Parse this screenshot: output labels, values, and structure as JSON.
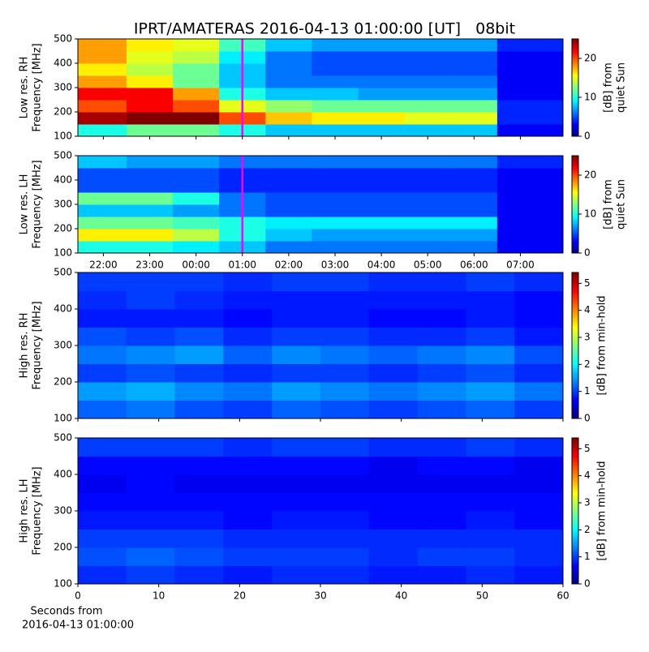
{
  "title": "IPRT/AMATERAS 2016-04-13 01:00:00 [UT]   08bit",
  "chart_data": [
    {
      "type": "spectrogram",
      "ylabel": [
        "Low res. RH",
        "Frequency [MHz]"
      ],
      "cmap": "jet",
      "xlim": [
        21.45,
        31.92
      ],
      "ylim": [
        100,
        500
      ],
      "xticks": [
        {
          "value": 22,
          "label": "22:00"
        },
        {
          "value": 23,
          "label": "23:00"
        },
        {
          "value": 24,
          "label": "00:00"
        },
        {
          "value": 25,
          "label": "01:00"
        },
        {
          "value": 26,
          "label": "02:00"
        },
        {
          "value": 27,
          "label": "03:00"
        },
        {
          "value": 28,
          "label": "04:00"
        },
        {
          "value": 29,
          "label": "05:00"
        },
        {
          "value": 30,
          "label": "06:00"
        },
        {
          "value": 31,
          "label": "07:00"
        }
      ],
      "show_xticklabels": false,
      "yticks": [
        100,
        200,
        300,
        400,
        500
      ],
      "time_bins": [
        21.45,
        22.5,
        23.5,
        24.5,
        25.5,
        26.5,
        27.5,
        28.5,
        29.5,
        30.5,
        31.92
      ],
      "freq_bins": [
        100,
        150,
        200,
        250,
        300,
        350,
        400,
        450,
        500
      ],
      "z": [
        [
          10,
          12,
          12,
          10,
          8,
          8,
          8,
          8,
          8,
          3
        ],
        [
          24,
          25,
          25,
          20,
          17,
          16,
          16,
          15,
          15,
          4
        ],
        [
          20,
          22,
          20,
          15,
          13,
          12,
          12,
          12,
          12,
          4
        ],
        [
          22,
          22,
          18,
          10,
          8,
          8,
          7,
          7,
          7,
          3
        ],
        [
          18,
          16,
          12,
          8,
          6,
          6,
          6,
          6,
          6,
          3
        ],
        [
          16,
          14,
          12,
          8,
          6,
          5,
          5,
          5,
          5,
          3
        ],
        [
          18,
          15,
          14,
          9,
          6,
          5,
          5,
          5,
          5,
          3
        ],
        [
          18,
          16,
          15,
          11,
          8,
          7,
          7,
          7,
          7,
          4
        ]
      ],
      "vlines": [
        {
          "value": 25,
          "color": "#ff00ff"
        }
      ],
      "clim": [
        0,
        25
      ],
      "cticks": [
        0,
        10,
        20
      ],
      "clabel": [
        "[dB] from",
        "quiet Sun"
      ]
    },
    {
      "type": "spectrogram",
      "ylabel": [
        "Low res. LH",
        "Frequency [MHz]"
      ],
      "cmap": "jet",
      "xlim": [
        21.45,
        31.92
      ],
      "ylim": [
        100,
        500
      ],
      "xticks": [
        {
          "value": 22,
          "label": "22:00"
        },
        {
          "value": 23,
          "label": "23:00"
        },
        {
          "value": 24,
          "label": "00:00"
        },
        {
          "value": 25,
          "label": "01:00"
        },
        {
          "value": 26,
          "label": "02:00"
        },
        {
          "value": 27,
          "label": "03:00"
        },
        {
          "value": 28,
          "label": "04:00"
        },
        {
          "value": 29,
          "label": "05:00"
        },
        {
          "value": 30,
          "label": "06:00"
        },
        {
          "value": 31,
          "label": "07:00"
        }
      ],
      "show_xticklabels": true,
      "yticks": [
        100,
        200,
        300,
        400,
        500
      ],
      "time_bins": [
        21.45,
        22.5,
        23.5,
        24.5,
        25.5,
        26.5,
        27.5,
        28.5,
        29.5,
        30.5,
        31.92
      ],
      "freq_bins": [
        100,
        150,
        200,
        250,
        300,
        350,
        400,
        450,
        500
      ],
      "z": [
        [
          10,
          10,
          9,
          8,
          6,
          6,
          6,
          6,
          6,
          3
        ],
        [
          16,
          16,
          14,
          10,
          8,
          7,
          7,
          7,
          7,
          3
        ],
        [
          12,
          12,
          11,
          10,
          9,
          9,
          9,
          9,
          9,
          3
        ],
        [
          8,
          8,
          7,
          6,
          5,
          5,
          5,
          5,
          5,
          3
        ],
        [
          12,
          12,
          10,
          6,
          5,
          5,
          5,
          5,
          5,
          3
        ],
        [
          5,
          5,
          5,
          4,
          4,
          4,
          4,
          4,
          4,
          3
        ],
        [
          5,
          5,
          5,
          4,
          4,
          4,
          4,
          4,
          4,
          3
        ],
        [
          8,
          7,
          7,
          6,
          6,
          6,
          6,
          6,
          6,
          4
        ]
      ],
      "vlines": [
        {
          "value": 25,
          "color": "#ff00ff"
        }
      ],
      "clim": [
        0,
        25
      ],
      "cticks": [
        0,
        10,
        20
      ],
      "clabel": [
        "[dB] from",
        "quiet Sun"
      ]
    },
    {
      "type": "spectrogram",
      "ylabel": [
        "High res. RH",
        "Frequency [MHz]"
      ],
      "cmap": "jet",
      "xlim": [
        0,
        60
      ],
      "ylim": [
        100,
        500
      ],
      "xticks": [
        0,
        10,
        20,
        30,
        40,
        50,
        60
      ],
      "show_xticklabels": false,
      "yticks": [
        100,
        200,
        300,
        400,
        500
      ],
      "time_bins": [
        0,
        6,
        12,
        18,
        24,
        30,
        36,
        42,
        48,
        54,
        60
      ],
      "freq_bins": [
        100,
        150,
        200,
        250,
        300,
        350,
        400,
        450,
        500
      ],
      "z": [
        [
          1.2,
          1.3,
          1.1,
          1.0,
          1.2,
          1.1,
          1.0,
          1.1,
          1.2,
          1.0
        ],
        [
          1.5,
          1.6,
          1.4,
          1.3,
          1.5,
          1.4,
          1.3,
          1.4,
          1.5,
          1.3
        ],
        [
          1.0,
          1.1,
          1.0,
          0.9,
          1.0,
          1.0,
          0.9,
          1.0,
          1.1,
          0.9
        ],
        [
          1.3,
          1.4,
          1.5,
          1.2,
          1.4,
          1.3,
          1.2,
          1.3,
          1.4,
          1.1
        ],
        [
          1.1,
          1.0,
          1.1,
          0.9,
          1.0,
          1.0,
          0.9,
          0.9,
          1.0,
          0.8
        ],
        [
          0.8,
          0.8,
          0.8,
          0.7,
          0.8,
          0.8,
          0.7,
          0.7,
          0.8,
          0.7
        ],
        [
          0.9,
          1.0,
          0.9,
          0.8,
          0.8,
          0.8,
          0.8,
          0.8,
          0.8,
          0.7
        ],
        [
          1.0,
          1.0,
          1.0,
          0.9,
          1.0,
          1.0,
          0.9,
          0.9,
          1.0,
          0.9
        ]
      ],
      "clim": [
        0,
        5.4
      ],
      "cticks": [
        0,
        1,
        2,
        3,
        4,
        5
      ],
      "clabel": [
        "[dB] from min-hold"
      ]
    },
    {
      "type": "spectrogram",
      "ylabel": [
        "High res. LH",
        "Frequency [MHz]"
      ],
      "cmap": "jet",
      "xlim": [
        0,
        60
      ],
      "ylim": [
        100,
        500
      ],
      "xticks": [
        0,
        10,
        20,
        30,
        40,
        50,
        60
      ],
      "show_xticklabels": true,
      "xlabel": [
        "Seconds from",
        "2016-04-13 01:00:00"
      ],
      "yticks": [
        100,
        200,
        300,
        400,
        500
      ],
      "time_bins": [
        0,
        6,
        12,
        18,
        24,
        30,
        36,
        42,
        48,
        54,
        60
      ],
      "freq_bins": [
        100,
        150,
        200,
        250,
        300,
        350,
        400,
        450,
        500
      ],
      "z": [
        [
          0.9,
          1.0,
          0.9,
          0.8,
          0.9,
          0.9,
          0.8,
          0.8,
          0.9,
          0.8
        ],
        [
          1.1,
          1.2,
          1.1,
          1.0,
          1.0,
          1.0,
          0.9,
          1.0,
          1.0,
          0.9
        ],
        [
          1.0,
          1.0,
          1.0,
          0.9,
          0.9,
          0.9,
          0.9,
          0.9,
          0.9,
          0.9
        ],
        [
          0.8,
          0.8,
          0.8,
          0.7,
          0.8,
          0.8,
          0.7,
          0.7,
          0.8,
          0.7
        ],
        [
          0.7,
          0.7,
          0.7,
          0.7,
          0.7,
          0.7,
          0.7,
          0.7,
          0.7,
          0.7
        ],
        [
          0.6,
          0.7,
          0.6,
          0.6,
          0.6,
          0.6,
          0.6,
          0.6,
          0.6,
          0.6
        ],
        [
          0.7,
          0.7,
          0.7,
          0.7,
          0.7,
          0.7,
          0.6,
          0.7,
          0.7,
          0.6
        ],
        [
          1.0,
          1.0,
          1.0,
          0.9,
          1.0,
          1.0,
          0.9,
          0.9,
          1.0,
          0.9
        ]
      ],
      "clim": [
        0,
        5.4
      ],
      "cticks": [
        0,
        1,
        2,
        3,
        4,
        5
      ],
      "clabel": [
        "[dB] from min-hold"
      ]
    }
  ]
}
